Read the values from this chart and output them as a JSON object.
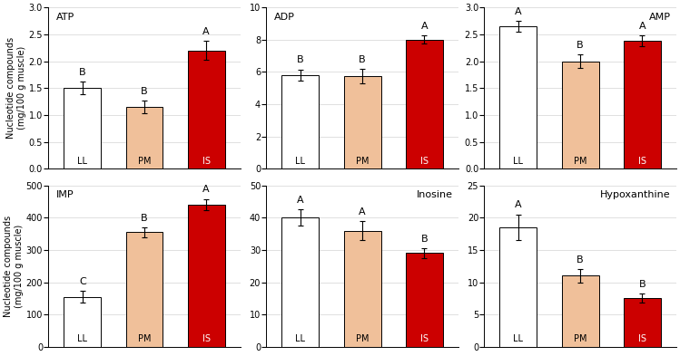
{
  "subplots": [
    {
      "title": "ATP",
      "title_loc": "left",
      "ylim": [
        0,
        3
      ],
      "yticks": [
        0,
        0.5,
        1.0,
        1.5,
        2.0,
        2.5,
        3.0
      ],
      "values": [
        1.5,
        1.15,
        2.2
      ],
      "errors": [
        0.12,
        0.12,
        0.18
      ],
      "letters": [
        "B",
        "B",
        "A"
      ],
      "row": 0,
      "col": 0
    },
    {
      "title": "ADP",
      "title_loc": "left",
      "ylim": [
        0,
        10
      ],
      "yticks": [
        0,
        2,
        4,
        6,
        8,
        10
      ],
      "values": [
        5.8,
        5.75,
        8.0
      ],
      "errors": [
        0.35,
        0.45,
        0.25
      ],
      "letters": [
        "B",
        "B",
        "A"
      ],
      "row": 0,
      "col": 1
    },
    {
      "title": "AMP",
      "title_loc": "right",
      "ylim": [
        0,
        3
      ],
      "yticks": [
        0,
        0.5,
        1.0,
        1.5,
        2.0,
        2.5,
        3.0
      ],
      "values": [
        2.65,
        2.0,
        2.38
      ],
      "errors": [
        0.1,
        0.12,
        0.1
      ],
      "letters": [
        "A",
        "B",
        "A"
      ],
      "row": 0,
      "col": 2
    },
    {
      "title": "IMP",
      "title_loc": "left",
      "ylim": [
        0,
        500
      ],
      "yticks": [
        0,
        100,
        200,
        300,
        400,
        500
      ],
      "values": [
        155,
        355,
        440
      ],
      "errors": [
        18,
        15,
        18
      ],
      "letters": [
        "C",
        "B",
        "A"
      ],
      "row": 1,
      "col": 0
    },
    {
      "title": "Inosine",
      "title_loc": "right",
      "ylim": [
        0,
        50
      ],
      "yticks": [
        0,
        10,
        20,
        30,
        40,
        50
      ],
      "values": [
        40,
        36,
        29
      ],
      "errors": [
        2.5,
        3.0,
        1.5
      ],
      "letters": [
        "A",
        "A",
        "B"
      ],
      "row": 1,
      "col": 1
    },
    {
      "title": "Hypoxanthine",
      "title_loc": "right",
      "ylim": [
        0,
        25
      ],
      "yticks": [
        0,
        5,
        10,
        15,
        20,
        25
      ],
      "values": [
        18.5,
        11,
        7.5
      ],
      "errors": [
        2.0,
        1.0,
        0.7
      ],
      "letters": [
        "A",
        "B",
        "B"
      ],
      "row": 1,
      "col": 2
    }
  ],
  "bar_colors": [
    "white",
    "#f0c09a",
    "#cc0000"
  ],
  "bar_edgecolor": "black",
  "bar_labels": [
    "LL",
    "PM",
    "IS"
  ],
  "bar_label_colors": [
    "black",
    "black",
    "white"
  ],
  "ylabel": "Nucleotide compounds\n(mg/100 g muscle)",
  "letter_fontsize": 8,
  "label_fontsize": 7,
  "title_fontsize": 8,
  "tick_fontsize": 7,
  "bar_width": 0.6,
  "background_color": "white"
}
